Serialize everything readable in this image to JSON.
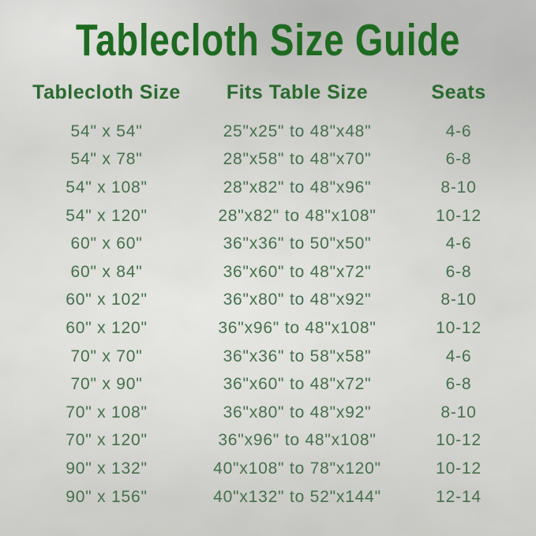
{
  "title": "Tablecloth Size Guide",
  "colors": {
    "title_green": "#1d6a20",
    "header_green": "#2a6a2e",
    "data_green": "#44704b",
    "background_silver": "#d6d6d2"
  },
  "table": {
    "headers": [
      "Tablecloth Size",
      "Fits Table Size",
      "Seats"
    ],
    "rows": [
      {
        "tablecloth": "54\" x 54\"",
        "fits": "25\"x25\" to 48\"x48\"",
        "seats": "4-6"
      },
      {
        "tablecloth": "54\" x 78\"",
        "fits": "28\"x58\" to 48\"x70\"",
        "seats": "6-8"
      },
      {
        "tablecloth": "54\" x 108\"",
        "fits": "28\"x82\" to 48\"x96\"",
        "seats": "8-10"
      },
      {
        "tablecloth": "54\" x 120\"",
        "fits": "28\"x82\" to 48\"x108\"",
        "seats": "10-12"
      },
      {
        "tablecloth": "60\" x 60\"",
        "fits": "36\"x36\" to 50\"x50\"",
        "seats": "4-6"
      },
      {
        "tablecloth": "60\" x 84\"",
        "fits": "36\"x60\" to 48\"x72\"",
        "seats": "6-8"
      },
      {
        "tablecloth": "60\" x 102\"",
        "fits": "36\"x80\" to 48\"x92\"",
        "seats": "8-10"
      },
      {
        "tablecloth": "60\" x 120\"",
        "fits": "36\"x96\" to 48\"x108\"",
        "seats": "10-12"
      },
      {
        "tablecloth": "70\" x 70\"",
        "fits": "36\"x36\" to 58\"x58\"",
        "seats": "4-6"
      },
      {
        "tablecloth": "70\" x 90\"",
        "fits": "36\"x60\" to 48\"x72\"",
        "seats": "6-8"
      },
      {
        "tablecloth": "70\" x 108\"",
        "fits": "36\"x80\" to 48\"x92\"",
        "seats": "8-10"
      },
      {
        "tablecloth": "70\" x 120\"",
        "fits": "36\"x96\" to 48\"x108\"",
        "seats": "10-12"
      },
      {
        "tablecloth": "90\" x 132\"",
        "fits": "40\"x108\" to 78\"x120\"",
        "seats": "10-12"
      },
      {
        "tablecloth": "90\" x 156\"",
        "fits": "40\"x132\" to 52\"x144\"",
        "seats": "12-14"
      }
    ]
  }
}
